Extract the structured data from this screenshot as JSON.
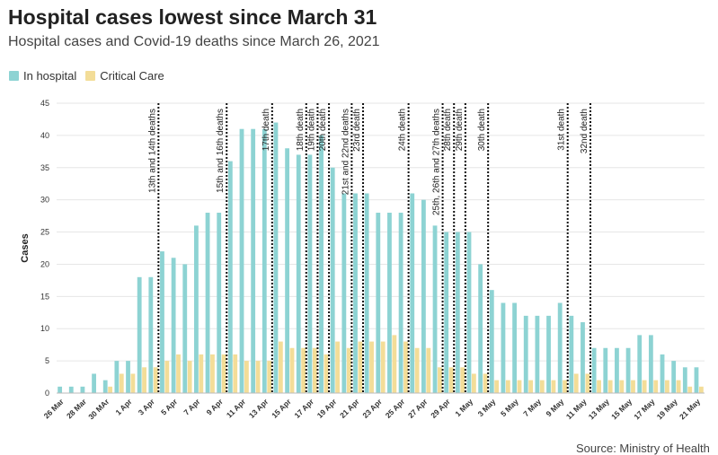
{
  "title": "Hospital cases lowest since March 31",
  "subtitle": "Hospital cases and Covid-19 deaths since March 26, 2021",
  "source": "Source: Ministry of Health",
  "legend": [
    {
      "label": "In hospital",
      "color": "#8dd3d3"
    },
    {
      "label": "Critical Care",
      "color": "#f3dd98"
    }
  ],
  "chart_data": {
    "type": "bar",
    "ylabel": "Cases",
    "ylim": [
      0,
      45
    ],
    "yticks": [
      0,
      5,
      10,
      15,
      20,
      25,
      30,
      35,
      40,
      45
    ],
    "grid": true,
    "legend_position": "top-left",
    "categories": [
      "26 Mar",
      "27 Mar",
      "28 Mar",
      "29 Mar",
      "30 Mar",
      "31 Mar",
      "1 Apr",
      "2 Apr",
      "3 Apr",
      "4 Apr",
      "5 Apr",
      "6 Apr",
      "7 Apr",
      "8 Apr",
      "9 Apr",
      "10 Apr",
      "11 Apr",
      "12 Apr",
      "13 Apr",
      "14 Apr",
      "15 Apr",
      "16 Apr",
      "17 Apr",
      "18 Apr",
      "19 Apr",
      "20 Apr",
      "21 Apr",
      "22 Apr",
      "23 Apr",
      "24 Apr",
      "25 Apr",
      "26 Apr",
      "27 Apr",
      "28 Apr",
      "29 Apr",
      "30 Apr",
      "1 May",
      "2 May",
      "3 May",
      "4 May",
      "5 May",
      "6 May",
      "7 May",
      "8 May",
      "9 May",
      "10 May",
      "11 May",
      "12 May",
      "13 May",
      "14 May",
      "15 May",
      "16 May",
      "17 May",
      "18 May",
      "19 May",
      "20 May",
      "21 May"
    ],
    "xtick_labels": [
      "26 Mar",
      "28 Mar",
      "30 MAr",
      "1 Apr",
      "3 Apr",
      "5 Apr",
      "7 Apr",
      "9 Apr",
      "11 Apr",
      "13 Apr",
      "15 Apr",
      "17 Apr",
      "19 Apr",
      "21 Apr",
      "23 Apr",
      "25 Apr",
      "27 Apr",
      "29 Apr",
      "1 May",
      "3 May",
      "5 May",
      "7 May",
      "9 May",
      "11 May",
      "13 May",
      "15 May",
      "17 May",
      "19 May",
      "21 May"
    ],
    "series": [
      {
        "name": "In hospital",
        "color": "#8dd3d3",
        "values": [
          1,
          1,
          1,
          3,
          2,
          5,
          5,
          18,
          18,
          22,
          21,
          20,
          26,
          28,
          28,
          36,
          41,
          41,
          41,
          42,
          38,
          37,
          37,
          40,
          35,
          31,
          31,
          31,
          28,
          28,
          28,
          31,
          30,
          26,
          25,
          25,
          25,
          20,
          16,
          14,
          14,
          12,
          12,
          12,
          14,
          12,
          11,
          7,
          7,
          7,
          7,
          9,
          9,
          6,
          5,
          4,
          4
        ]
      },
      {
        "name": "Critical Care",
        "color": "#f3dd98",
        "values": [
          0,
          0,
          0,
          0,
          1,
          3,
          3,
          4,
          4,
          5,
          6,
          5,
          6,
          6,
          6,
          6,
          5,
          5,
          5,
          8,
          7,
          7,
          7,
          6,
          8,
          7,
          8,
          8,
          8,
          9,
          8,
          7,
          7,
          4,
          4,
          4,
          3,
          3,
          2,
          2,
          2,
          2,
          2,
          2,
          2,
          3,
          3,
          2,
          2,
          2,
          2,
          2,
          2,
          2,
          2,
          1,
          1
        ]
      }
    ],
    "annotations": [
      {
        "at": "4 Apr",
        "text": "13th and 14th deaths"
      },
      {
        "at": "10 Apr",
        "text": "15th and 16th deaths"
      },
      {
        "at": "14 Apr",
        "text": "17th death"
      },
      {
        "at": "17 Apr",
        "text": "18th death"
      },
      {
        "at": "18 Apr",
        "text": "19th death"
      },
      {
        "at": "19 Apr",
        "text": "20th death"
      },
      {
        "at": "21 Apr",
        "text": "21st and 22nd deaths"
      },
      {
        "at": "22 Apr",
        "text": "23rd death"
      },
      {
        "at": "26 Apr",
        "text": "24th death"
      },
      {
        "at": "29 Apr",
        "text": "25th, 26th and 27th deaths"
      },
      {
        "at": "30 Apr",
        "text": "28th death"
      },
      {
        "at": "1 May",
        "text": "29th death"
      },
      {
        "at": "3 May",
        "text": "30th death"
      },
      {
        "at": "10 May",
        "text": "31st death"
      },
      {
        "at": "12 May",
        "text": "32nd death"
      }
    ]
  }
}
